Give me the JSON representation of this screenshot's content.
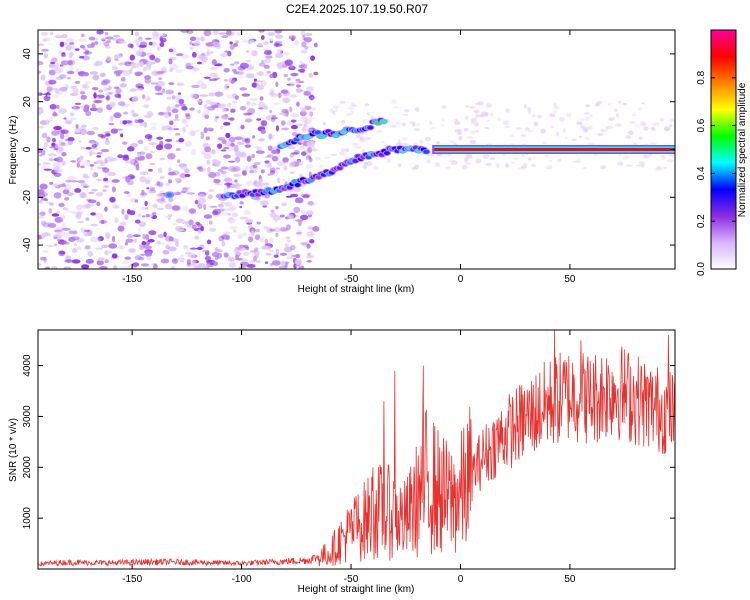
{
  "title": "C2E4.2025.107.19.50.R07",
  "chart_data": [
    {
      "type": "heatmap",
      "title": "C2E4.2025.107.19.50.R07",
      "xlabel": "Height of straight line (km)",
      "ylabel": "Frequency (Hz)",
      "xlim": [
        -193,
        98
      ],
      "ylim": [
        -50,
        50
      ],
      "xticks": [
        -150,
        -100,
        -50,
        0,
        50
      ],
      "xtick_labels": [
        "-150",
        "-100",
        "-50",
        "0",
        "50"
      ],
      "yticks": [
        -40,
        -20,
        0,
        20,
        40
      ],
      "ytick_labels": [
        "-40",
        "-20",
        "0",
        "20",
        "40"
      ],
      "colorbar": {
        "label": "Normalized spectral amplitude",
        "range": [
          0,
          1
        ],
        "ticks": [
          0.0,
          0.2,
          0.4,
          0.6,
          0.8
        ],
        "tick_labels": [
          "0.0",
          "0.2",
          "0.4",
          "0.6",
          "0.8"
        ],
        "colormap": [
          "#ffffff",
          "#d9b3ff",
          "#8a2be2",
          "#0000ff",
          "#00ffff",
          "#00ff00",
          "#ffff00",
          "#ff8000",
          "#ff0000",
          "#ff0099"
        ]
      },
      "features": [
        {
          "name": "main-line",
          "x_start": -12,
          "x_end": 98,
          "freq": 0,
          "amplitude": 0.9
        },
        {
          "name": "upper-branch",
          "points": [
            [
              -82,
              2
            ],
            [
              -70,
              6
            ],
            [
              -55,
              7
            ],
            [
              -45,
              9
            ],
            [
              -35,
              12
            ]
          ],
          "amplitude": 0.4
        },
        {
          "name": "lower-branch",
          "points": [
            [
              -108,
              -19
            ],
            [
              -90,
              -18
            ],
            [
              -78,
              -15
            ],
            [
              -60,
              -10
            ],
            [
              -45,
              -3
            ],
            [
              -30,
              0
            ],
            [
              -15,
              0
            ]
          ],
          "amplitude": 0.35
        },
        {
          "name": "isolated-spot",
          "x": -133,
          "freq": -19,
          "amplitude": 0.3
        },
        {
          "name": "noise-cloud",
          "x_start": -193,
          "x_end": -70,
          "amplitude": 0.05
        }
      ]
    },
    {
      "type": "line",
      "xlabel": "Height of straight line (km)",
      "ylabel": "SNR (10 * v/v)",
      "xlim": [
        -193,
        98
      ],
      "ylim": [
        0,
        4700
      ],
      "xticks": [
        -150,
        -100,
        -50,
        0,
        50
      ],
      "xtick_labels": [
        "-150",
        "-100",
        "-50",
        "0",
        "50"
      ],
      "yticks": [
        1000,
        2000,
        3000,
        4000
      ],
      "ytick_labels": [
        "1000",
        "2000",
        "3000",
        "4000"
      ],
      "color": "#e8322f",
      "series": [
        {
          "name": "SNR",
          "x": [
            -193,
            -180,
            -160,
            -140,
            -120,
            -100,
            -80,
            -70,
            -60,
            -55,
            -50,
            -45,
            -40,
            -35,
            -30,
            -25,
            -20,
            -15,
            -10,
            -5,
            0,
            10,
            20,
            30,
            40,
            50,
            60,
            70,
            80,
            90,
            98
          ],
          "values": [
            100,
            130,
            120,
            140,
            130,
            110,
            150,
            170,
            300,
            550,
            750,
            900,
            1100,
            1150,
            1050,
            950,
            1350,
            1800,
            1500,
            1350,
            1450,
            2200,
            2650,
            2950,
            3250,
            3450,
            3350,
            3550,
            3350,
            3150,
            3050
          ],
          "spikes": [
            {
              "x": -48,
              "value": 1250
            },
            {
              "x": -40,
              "value": 2000
            },
            {
              "x": -35,
              "value": 3300
            },
            {
              "x": -30,
              "value": 3900
            },
            {
              "x": -17,
              "value": 4000
            },
            {
              "x": 43,
              "value": 4700
            },
            {
              "x": 55,
              "value": 4500
            },
            {
              "x": 95,
              "value": 4600
            }
          ]
        }
      ]
    }
  ]
}
